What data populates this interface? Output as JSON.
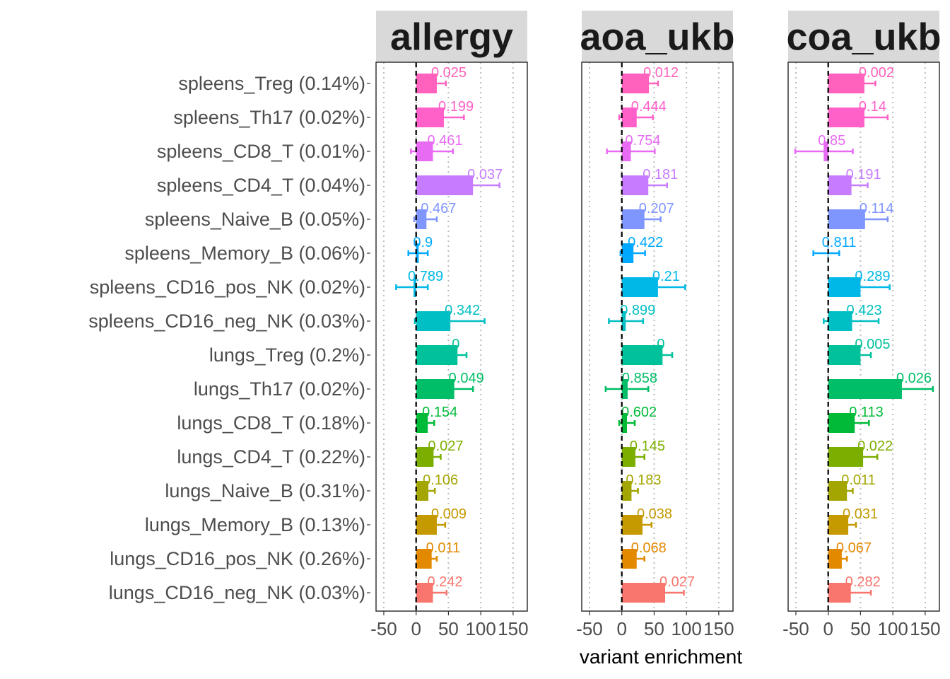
{
  "chart_data": {
    "type": "bar",
    "orientation": "horizontal",
    "facet_layout": "1x3",
    "xlabel": "variant enrichment",
    "xlim": [
      -62,
      172
    ],
    "x_ticks": [
      -50,
      0,
      50,
      100,
      150
    ],
    "x_tick_labels": [
      "-50",
      "0",
      "50",
      "100",
      "150"
    ],
    "grid": "vertical dotted at major ticks",
    "reference_line": {
      "x": 0,
      "style": "dashed"
    },
    "legend": "none",
    "categories": [
      "spleens_Treg (0.14%)",
      "spleens_Th17 (0.02%)",
      "spleens_CD8_T (0.01%)",
      "spleens_CD4_T (0.04%)",
      "spleens_Naive_B (0.05%)",
      "spleens_Memory_B (0.06%)",
      "spleens_CD16_pos_NK (0.02%)",
      "spleens_CD16_neg_NK (0.03%)",
      "lungs_Treg (0.2%)",
      "lungs_Th17 (0.02%)",
      "lungs_CD8_T (0.18%)",
      "lungs_CD4_T (0.22%)",
      "lungs_Naive_B (0.31%)",
      "lungs_Memory_B (0.13%)",
      "lungs_CD16_pos_NK (0.26%)",
      "lungs_CD16_neg_NK (0.03%)"
    ],
    "colors": [
      "#FF62BC",
      "#FF61C9",
      "#E76BF3",
      "#C77CFF",
      "#7F96FF",
      "#00A9FF",
      "#00B8E7",
      "#00BFC4",
      "#00C19A",
      "#00BE67",
      "#00BA38",
      "#7CAE00",
      "#A3A500",
      "#C49A00",
      "#E38900",
      "#F8766D"
    ],
    "panels": [
      {
        "title": "allergy",
        "values": [
          32,
          43,
          26,
          88,
          16,
          4,
          -4,
          53,
          64,
          59,
          18,
          27,
          19,
          32,
          24,
          26
        ],
        "err_low": [
          18,
          21,
          -8,
          46,
          -3,
          -12,
          -31,
          -2,
          48,
          33,
          5,
          17,
          7,
          20,
          17,
          11
        ],
        "err_high": [
          46,
          74,
          57,
          129,
          32,
          18,
          18,
          106,
          78,
          88,
          28,
          38,
          29,
          45,
          32,
          47
        ],
        "p_labels": [
          "0.025",
          "0.199",
          "0.461",
          "0.037",
          "0.467",
          "0.9",
          "0.789",
          "0.342",
          "0",
          "0.049",
          "0.154",
          "0.027",
          "0.106",
          "0.009",
          "0.011",
          "0.242"
        ]
      },
      {
        "title": "aoa_ukb",
        "values": [
          42,
          23,
          14,
          41,
          35,
          18,
          56,
          6,
          63,
          9,
          8,
          21,
          15,
          32,
          23,
          67
        ],
        "err_low": [
          20,
          -4,
          -23,
          12,
          8,
          -2,
          16,
          -20,
          48,
          -25,
          -4,
          7,
          5,
          18,
          11,
          33
        ],
        "err_high": [
          56,
          48,
          51,
          70,
          60,
          36,
          98,
          33,
          78,
          41,
          20,
          35,
          25,
          46,
          35,
          96
        ],
        "p_labels": [
          "0.012",
          "0.444",
          "0.754",
          "0.181",
          "0.207",
          "0.422",
          "0.21",
          "0.899",
          "0",
          "0.858",
          "0.602",
          "0.145",
          "0.183",
          "0.038",
          "0.068",
          "0.027"
        ]
      },
      {
        "title": "coa_ukb",
        "values": [
          56,
          56,
          -7,
          36,
          57,
          -1,
          50,
          37,
          50,
          114,
          41,
          54,
          29,
          31,
          21,
          35
        ],
        "err_low": [
          38,
          20,
          -51,
          11,
          21,
          -23,
          7,
          -7,
          32,
          66,
          19,
          32,
          20,
          19,
          12,
          7
        ],
        "err_high": [
          73,
          92,
          38,
          61,
          92,
          17,
          95,
          78,
          66,
          162,
          63,
          76,
          38,
          43,
          29,
          66
        ],
        "p_labels": [
          "0.002",
          "0.14",
          "0.85",
          "0.191",
          "0.114",
          "0.811",
          "0.289",
          "0.423",
          "0.005",
          "0.026",
          "0.113",
          "0.022",
          "0.011",
          "0.031",
          "0.067",
          "0.282"
        ]
      }
    ]
  }
}
